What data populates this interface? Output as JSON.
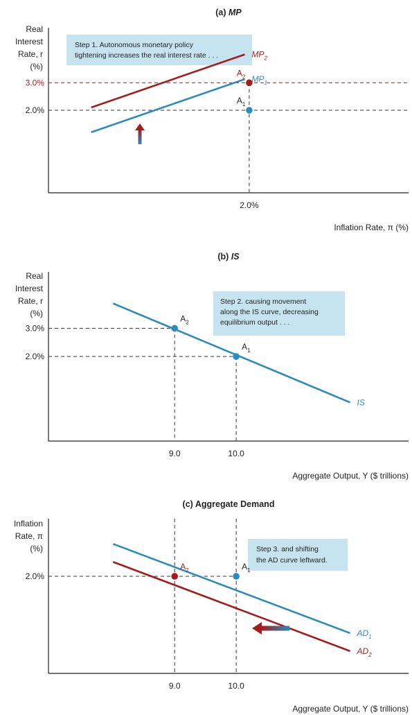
{
  "colors": {
    "blue": "#2b8bbf",
    "red": "#a51c1c",
    "annotation_bg": "#c6e4ef",
    "axis": "#222222",
    "dash": "#333333"
  },
  "chart_data": [
    {
      "type": "line",
      "title_prefix": "(a) ",
      "title_em": "MP",
      "ylabel": [
        "Real",
        "Interest",
        "Rate, r",
        "(%)"
      ],
      "xlabel": "Inflation Rate, π (%)",
      "x_ticks": [
        {
          "value": 2.0,
          "label": "2.0%"
        }
      ],
      "y_ticks": [
        {
          "value": 3.0,
          "label": "3.0%",
          "color": "red"
        },
        {
          "value": 2.0,
          "label": "2.0%",
          "color": "dark"
        }
      ],
      "series": [
        {
          "name": "MP",
          "sub": "1",
          "color": "blue",
          "points": [
            [
              -0.48,
              1.2
            ],
            [
              1.93,
              3.13
            ]
          ]
        },
        {
          "name": "MP",
          "sub": "2",
          "color": "red",
          "points": [
            [
              -0.48,
              2.1
            ],
            [
              1.93,
              4.03
            ]
          ]
        }
      ],
      "points": [
        {
          "label": "A",
          "sub": "1",
          "x": 2.0,
          "y": 2.0,
          "color": "blue"
        },
        {
          "label": "A",
          "sub": "2",
          "x": 2.0,
          "y": 3.0,
          "color": "red"
        }
      ],
      "annotation": [
        "Step 1. Autonomous monetary policy",
        "tightening increases the real interest rate . . ."
      ],
      "arrow": "up"
    },
    {
      "type": "line",
      "title_prefix": "(b) ",
      "title_em": "IS",
      "ylabel": [
        "Real",
        "Interest",
        "Rate, r",
        "(%)"
      ],
      "xlabel": "Aggregate Output, Y ($ trillions)",
      "x_ticks": [
        {
          "value": 9.0,
          "label": "9.0"
        },
        {
          "value": 10.0,
          "label": "10.0"
        }
      ],
      "y_ticks": [
        {
          "value": 3.0,
          "label": "3.0%"
        },
        {
          "value": 2.0,
          "label": "2.0%"
        }
      ],
      "series": [
        {
          "name": "IS",
          "sub": "",
          "color": "blue",
          "points": [
            [
              8.0,
              3.88
            ],
            [
              11.85,
              0.37
            ]
          ]
        }
      ],
      "points": [
        {
          "label": "A",
          "sub": "2",
          "x": 9.0,
          "y": 3.0,
          "color": "blue"
        },
        {
          "label": "A",
          "sub": "1",
          "x": 10.0,
          "y": 2.0,
          "color": "blue"
        }
      ],
      "annotation": [
        "Step 2. causing movement",
        "along the IS curve, decreasing",
        "equilibrium output . . ."
      ]
    },
    {
      "type": "line",
      "title_prefix": "(c) ",
      "title_em": "Aggregate Demand",
      "ylabel": [
        "Inflation",
        "Rate, π",
        "(%)"
      ],
      "xlabel": "Aggregate Output, Y ($ trillions)",
      "x_ticks": [
        {
          "value": 9.0,
          "label": "9.0"
        },
        {
          "value": 10.0,
          "label": "10.0"
        }
      ],
      "y_ticks": [
        {
          "value": 2.0,
          "label": "2.0%"
        }
      ],
      "series": [
        {
          "name": "AD",
          "sub": "1",
          "color": "blue",
          "points": [
            [
              8.0,
              2.9
            ],
            [
              11.85,
              0.42
            ]
          ]
        },
        {
          "name": "AD",
          "sub": "2",
          "color": "red",
          "points": [
            [
              8.0,
              2.4
            ],
            [
              11.85,
              -0.08
            ]
          ]
        }
      ],
      "points": [
        {
          "label": "A",
          "sub": "2",
          "x": 9.0,
          "y": 2.0,
          "color": "red"
        },
        {
          "label": "A",
          "sub": "1",
          "x": 10.0,
          "y": 2.0,
          "color": "blue"
        }
      ],
      "annotation": [
        "Step 3. and shifting",
        "the AD curve leftward."
      ],
      "arrow": "left"
    }
  ]
}
